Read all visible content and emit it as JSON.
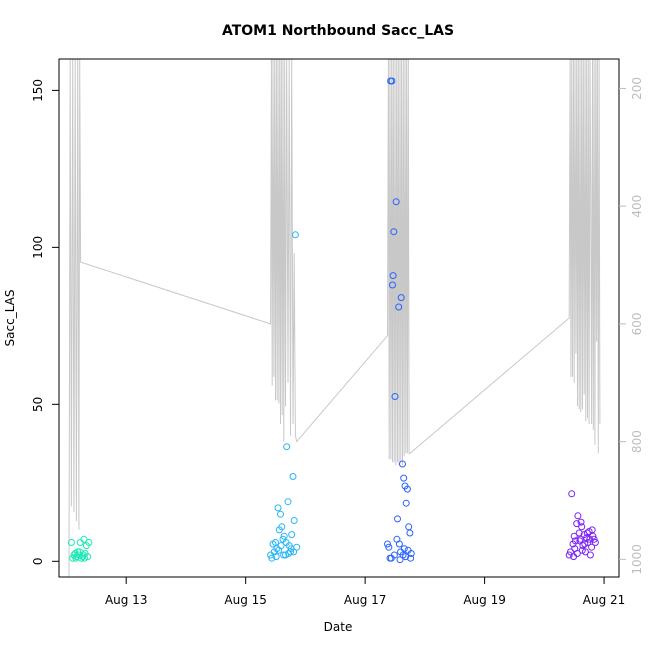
{
  "chart_data": {
    "type": "scatter",
    "title": "ATOM1 Northbound Sacc_LAS",
    "xlabel": "Date",
    "ylabel": "Sacc_LAS",
    "xlim": [
      "2019-08-11T21:00",
      "2019-08-21T06:00"
    ],
    "ylim": [
      -5,
      160
    ],
    "x_ticks": [
      {
        "x": "2019-08-13",
        "label": "Aug 13"
      },
      {
        "x": "2019-08-15",
        "label": "Aug 15"
      },
      {
        "x": "2019-08-17",
        "label": "Aug 17"
      },
      {
        "x": "2019-08-19",
        "label": "Aug 19"
      },
      {
        "x": "2019-08-21",
        "label": "Aug 21"
      }
    ],
    "y_ticks": [
      0,
      50,
      100,
      150
    ],
    "y2": {
      "reversed": true,
      "lim": [
        1030,
        150
      ],
      "ticks": [
        200,
        400,
        600,
        800,
        1000
      ],
      "color": "#bdbdbd"
    },
    "grid": false,
    "series": [
      {
        "color": "#1de9b6",
        "points": [
          [
            "2019-08-12T02:00",
            6
          ],
          [
            "2019-08-12T02:30",
            1
          ],
          [
            "2019-08-12T03:00",
            2
          ],
          [
            "2019-08-12T03:30",
            2.5
          ],
          [
            "2019-08-12T04:00",
            1.5
          ],
          [
            "2019-08-12T04:30",
            3
          ],
          [
            "2019-08-12T05:00",
            2
          ],
          [
            "2019-08-12T05:30",
            6
          ],
          [
            "2019-08-12T06:00",
            1
          ],
          [
            "2019-08-12T06:30",
            1.5
          ],
          [
            "2019-08-12T07:00",
            7
          ],
          [
            "2019-08-12T07:30",
            2.5
          ],
          [
            "2019-08-12T08:00",
            5
          ],
          [
            "2019-08-12T08:30",
            1.5
          ],
          [
            "2019-08-12T09:00",
            6
          ],
          [
            "2019-08-12T03:45",
            1
          ],
          [
            "2019-08-12T05:15",
            3
          ],
          [
            "2019-08-12T06:45",
            2
          ],
          [
            "2019-08-12T07:15",
            1
          ]
        ]
      },
      {
        "color": "#29b6f6",
        "points": [
          [
            "2019-08-15T10:00",
            2
          ],
          [
            "2019-08-15T10:30",
            1
          ],
          [
            "2019-08-15T11:00",
            5.5
          ],
          [
            "2019-08-15T11:30",
            3
          ],
          [
            "2019-08-15T12:00",
            6
          ],
          [
            "2019-08-15T12:30",
            4
          ],
          [
            "2019-08-15T13:00",
            17
          ],
          [
            "2019-08-15T13:30",
            10
          ],
          [
            "2019-08-15T14:00",
            15
          ],
          [
            "2019-08-15T14:30",
            11
          ],
          [
            "2019-08-15T15:00",
            7
          ],
          [
            "2019-08-15T15:30",
            8
          ],
          [
            "2019-08-15T16:00",
            2
          ],
          [
            "2019-08-15T16:30",
            36.5
          ],
          [
            "2019-08-15T17:00",
            19
          ],
          [
            "2019-08-15T17:30",
            5
          ],
          [
            "2019-08-15T18:00",
            3
          ],
          [
            "2019-08-15T18:30",
            8.5
          ],
          [
            "2019-08-15T19:00",
            27
          ],
          [
            "2019-08-15T19:30",
            13
          ],
          [
            "2019-08-15T20:00",
            104
          ],
          [
            "2019-08-15T20:30",
            4.5
          ],
          [
            "2019-08-15T12:15",
            1.5
          ],
          [
            "2019-08-15T13:15",
            3.5
          ],
          [
            "2019-08-15T14:15",
            5
          ],
          [
            "2019-08-15T15:15",
            2
          ],
          [
            "2019-08-15T16:15",
            6
          ],
          [
            "2019-08-15T17:15",
            2.5
          ],
          [
            "2019-08-15T18:15",
            4
          ],
          [
            "2019-08-15T19:15",
            3
          ]
        ]
      },
      {
        "color": "#2962ff",
        "points": [
          [
            "2019-08-17T09:00",
            5.5
          ],
          [
            "2019-08-17T09:30",
            4.5
          ],
          [
            "2019-08-17T10:00",
            1
          ],
          [
            "2019-08-17T10:15",
            153
          ],
          [
            "2019-08-17T10:45",
            153
          ],
          [
            "2019-08-17T11:00",
            88
          ],
          [
            "2019-08-17T11:15",
            91
          ],
          [
            "2019-08-17T11:30",
            105
          ],
          [
            "2019-08-17T12:00",
            52.5
          ],
          [
            "2019-08-17T12:30",
            114.5
          ],
          [
            "2019-08-17T13:00",
            13.5
          ],
          [
            "2019-08-17T13:30",
            81
          ],
          [
            "2019-08-17T14:00",
            0.5
          ],
          [
            "2019-08-17T14:30",
            84
          ],
          [
            "2019-08-17T15:00",
            31
          ],
          [
            "2019-08-17T15:30",
            26.5
          ],
          [
            "2019-08-17T16:00",
            24
          ],
          [
            "2019-08-17T16:30",
            18.5
          ],
          [
            "2019-08-17T17:00",
            23
          ],
          [
            "2019-08-17T17:30",
            11
          ],
          [
            "2019-08-17T18:00",
            9
          ],
          [
            "2019-08-17T12:45",
            7
          ],
          [
            "2019-08-17T13:45",
            5.5
          ],
          [
            "2019-08-17T14:15",
            3
          ],
          [
            "2019-08-17T15:15",
            2
          ],
          [
            "2019-08-17T16:15",
            1.5
          ],
          [
            "2019-08-17T17:15",
            3.5
          ],
          [
            "2019-08-17T18:15",
            1
          ],
          [
            "2019-08-17T18:30",
            2.5
          ],
          [
            "2019-08-17T10:30",
            1
          ],
          [
            "2019-08-17T11:45",
            2
          ],
          [
            "2019-08-17T15:45",
            4
          ]
        ]
      },
      {
        "color": "#7c22f5",
        "points": [
          [
            "2019-08-20T10:00",
            2
          ],
          [
            "2019-08-20T10:30",
            3
          ],
          [
            "2019-08-20T11:00",
            21.5
          ],
          [
            "2019-08-20T11:30",
            5.5
          ],
          [
            "2019-08-20T12:00",
            8
          ],
          [
            "2019-08-20T12:30",
            6.5
          ],
          [
            "2019-08-20T13:00",
            12
          ],
          [
            "2019-08-20T13:30",
            14.5
          ],
          [
            "2019-08-20T14:00",
            9
          ],
          [
            "2019-08-20T14:30",
            7
          ],
          [
            "2019-08-20T15:00",
            11
          ],
          [
            "2019-08-20T15:30",
            5
          ],
          [
            "2019-08-20T16:00",
            8.5
          ],
          [
            "2019-08-20T16:30",
            3
          ],
          [
            "2019-08-20T17:00",
            7.5
          ],
          [
            "2019-08-20T17:30",
            6
          ],
          [
            "2019-08-20T18:00",
            9.5
          ],
          [
            "2019-08-20T18:30",
            2
          ],
          [
            "2019-08-20T19:00",
            4.5
          ],
          [
            "2019-08-20T19:30",
            8
          ],
          [
            "2019-08-20T20:00",
            7
          ],
          [
            "2019-08-20T20:30",
            6
          ],
          [
            "2019-08-20T12:15",
            4
          ],
          [
            "2019-08-20T13:15",
            2.5
          ],
          [
            "2019-08-20T14:15",
            6.5
          ],
          [
            "2019-08-20T15:15",
            3.5
          ],
          [
            "2019-08-20T16:15",
            5.5
          ],
          [
            "2019-08-20T17:15",
            9
          ],
          [
            "2019-08-20T18:15",
            7
          ],
          [
            "2019-08-20T19:15",
            10
          ],
          [
            "2019-08-20T11:45",
            1.5
          ],
          [
            "2019-08-20T14:45",
            12.5
          ]
        ]
      }
    ],
    "line_series": {
      "axis": "y2",
      "color": "#c8c8c8",
      "points": [
        [
          "2019-08-12T01:00",
          1030
        ],
        [
          "2019-08-12T01:30",
          150
        ],
        [
          "2019-08-12T02:00",
          910
        ],
        [
          "2019-08-12T02:30",
          150
        ],
        [
          "2019-08-12T03:00",
          920
        ],
        [
          "2019-08-12T03:30",
          150
        ],
        [
          "2019-08-12T04:00",
          935
        ],
        [
          "2019-08-12T04:30",
          150
        ],
        [
          "2019-08-12T05:00",
          950
        ],
        [
          "2019-08-12T05:20",
          150
        ],
        [
          "2019-08-12T05:40",
          495
        ],
        [
          "2019-08-15T10:00",
          600
        ],
        [
          "2019-08-15T10:20",
          150
        ],
        [
          "2019-08-15T10:40",
          705
        ],
        [
          "2019-08-15T11:00",
          150
        ],
        [
          "2019-08-15T11:20",
          690
        ],
        [
          "2019-08-15T11:40",
          150
        ],
        [
          "2019-08-15T12:00",
          730
        ],
        [
          "2019-08-15T12:20",
          150
        ],
        [
          "2019-08-15T12:40",
          730
        ],
        [
          "2019-08-15T13:00",
          150
        ],
        [
          "2019-08-15T13:20",
          735
        ],
        [
          "2019-08-15T13:40",
          150
        ],
        [
          "2019-08-15T14:00",
          770
        ],
        [
          "2019-08-15T14:20",
          150
        ],
        [
          "2019-08-15T14:40",
          755
        ],
        [
          "2019-08-15T15:00",
          150
        ],
        [
          "2019-08-15T15:20",
          800
        ],
        [
          "2019-08-15T15:40",
          150
        ],
        [
          "2019-08-15T16:00",
          740
        ],
        [
          "2019-08-15T16:30",
          150
        ],
        [
          "2019-08-15T17:00",
          700
        ],
        [
          "2019-08-15T17:30",
          150
        ],
        [
          "2019-08-15T18:00",
          790
        ],
        [
          "2019-08-15T18:30",
          150
        ],
        [
          "2019-08-15T19:00",
          770
        ],
        [
          "2019-08-15T19:30",
          480
        ],
        [
          "2019-08-15T20:00",
          790
        ],
        [
          "2019-08-15T20:30",
          800
        ],
        [
          "2019-08-17T09:00",
          620
        ],
        [
          "2019-08-17T09:20",
          150
        ],
        [
          "2019-08-17T09:40",
          830
        ],
        [
          "2019-08-17T10:00",
          150
        ],
        [
          "2019-08-17T10:20",
          830
        ],
        [
          "2019-08-17T10:40",
          150
        ],
        [
          "2019-08-17T11:00",
          835
        ],
        [
          "2019-08-17T11:20",
          150
        ],
        [
          "2019-08-17T11:40",
          835
        ],
        [
          "2019-08-17T12:00",
          150
        ],
        [
          "2019-08-17T12:20",
          840
        ],
        [
          "2019-08-17T12:40",
          150
        ],
        [
          "2019-08-17T13:00",
          835
        ],
        [
          "2019-08-17T13:20",
          150
        ],
        [
          "2019-08-17T13:40",
          840
        ],
        [
          "2019-08-17T14:00",
          150
        ],
        [
          "2019-08-17T14:20",
          835
        ],
        [
          "2019-08-17T14:40",
          150
        ],
        [
          "2019-08-17T15:00",
          840
        ],
        [
          "2019-08-17T15:20",
          150
        ],
        [
          "2019-08-17T15:40",
          825
        ],
        [
          "2019-08-17T16:00",
          150
        ],
        [
          "2019-08-17T16:20",
          820
        ],
        [
          "2019-08-17T16:40",
          150
        ],
        [
          "2019-08-17T17:00",
          820
        ],
        [
          "2019-08-17T17:20",
          150
        ],
        [
          "2019-08-17T17:40",
          820
        ],
        [
          "2019-08-17T18:00",
          820
        ],
        [
          "2019-08-20T10:00",
          590
        ],
        [
          "2019-08-20T10:20",
          150
        ],
        [
          "2019-08-20T10:40",
          690
        ],
        [
          "2019-08-20T11:00",
          150
        ],
        [
          "2019-08-20T11:20",
          690
        ],
        [
          "2019-08-20T11:40",
          150
        ],
        [
          "2019-08-20T12:00",
          700
        ],
        [
          "2019-08-20T12:20",
          150
        ],
        [
          "2019-08-20T12:40",
          650
        ],
        [
          "2019-08-20T13:00",
          150
        ],
        [
          "2019-08-20T13:20",
          740
        ],
        [
          "2019-08-20T13:40",
          150
        ],
        [
          "2019-08-20T14:00",
          745
        ],
        [
          "2019-08-20T14:20",
          150
        ],
        [
          "2019-08-20T14:40",
          750
        ],
        [
          "2019-08-20T15:00",
          150
        ],
        [
          "2019-08-20T15:20",
          745
        ],
        [
          "2019-08-20T15:40",
          150
        ],
        [
          "2019-08-20T16:00",
          720
        ],
        [
          "2019-08-20T16:20",
          150
        ],
        [
          "2019-08-20T16:40",
          765
        ],
        [
          "2019-08-20T17:00",
          150
        ],
        [
          "2019-08-20T17:20",
          760
        ],
        [
          "2019-08-20T17:40",
          150
        ],
        [
          "2019-08-20T18:00",
          770
        ],
        [
          "2019-08-20T18:20",
          150
        ],
        [
          "2019-08-20T18:40",
          380
        ],
        [
          "2019-08-20T19:00",
          770
        ],
        [
          "2019-08-20T19:20",
          150
        ],
        [
          "2019-08-20T19:40",
          780
        ],
        [
          "2019-08-20T20:00",
          150
        ],
        [
          "2019-08-20T20:20",
          805
        ],
        [
          "2019-08-20T20:40",
          150
        ],
        [
          "2019-08-20T21:00",
          630
        ],
        [
          "2019-08-20T21:20",
          150
        ],
        [
          "2019-08-20T21:40",
          820
        ],
        [
          "2019-08-20T22:00",
          150
        ],
        [
          "2019-08-20T22:20",
          770
        ]
      ]
    }
  }
}
